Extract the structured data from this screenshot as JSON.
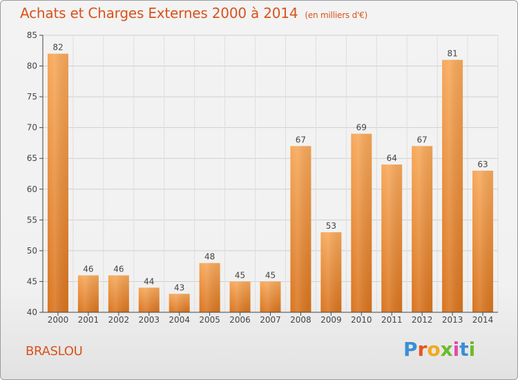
{
  "header": {
    "title": "Achats et Charges Externes 2000 à 2014",
    "subtitle": "(en milliers d'€)"
  },
  "footer": {
    "commune": "BRASLOU",
    "logo_text": "Proxiti"
  },
  "colors": {
    "title": "#d9521c",
    "bar_top": "#f7a85a",
    "bar_bottom": "#d9741e",
    "grid": "#cccccc",
    "axis": "#444444"
  },
  "chart_data": {
    "type": "bar",
    "title": "Achats et Charges Externes 2000 à 2014",
    "xlabel": "",
    "ylabel": "",
    "categories": [
      "2000",
      "2001",
      "2002",
      "2003",
      "2004",
      "2005",
      "2006",
      "2007",
      "2008",
      "2009",
      "2010",
      "2011",
      "2012",
      "2013",
      "2014"
    ],
    "values": [
      82,
      46,
      46,
      44,
      43,
      48,
      45,
      45,
      67,
      53,
      69,
      64,
      67,
      81,
      63
    ],
    "ylim": [
      40,
      85
    ],
    "yticks": [
      40,
      45,
      50,
      55,
      60,
      65,
      70,
      75,
      80,
      85
    ],
    "grid": true,
    "data_labels": true
  }
}
